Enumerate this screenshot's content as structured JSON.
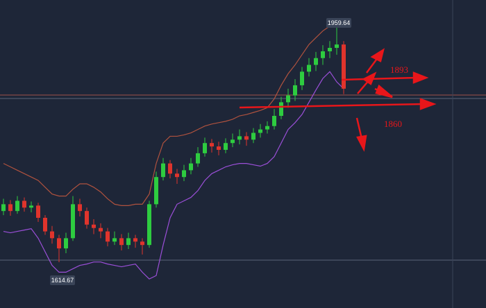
{
  "chart_data": {
    "type": "candlestick",
    "open": [
      1690,
      1700,
      1690,
      1705,
      1695,
      1698,
      1680,
      1660,
      1650,
      1635,
      1650,
      1700,
      1690,
      1670,
      1665,
      1660,
      1645,
      1650,
      1640,
      1650,
      1645,
      1640,
      1700,
      1740,
      1760,
      1745,
      1740,
      1750,
      1760,
      1775,
      1790,
      1785,
      1780,
      1790,
      1795,
      1800,
      1795,
      1805,
      1810,
      1815,
      1830,
      1850,
      1860,
      1875,
      1895,
      1905,
      1915,
      1925,
      1930,
      1935
    ],
    "high": [
      1708,
      1706,
      1712,
      1710,
      1704,
      1702,
      1684,
      1668,
      1655,
      1658,
      1712,
      1708,
      1695,
      1678,
      1672,
      1665,
      1660,
      1656,
      1658,
      1655,
      1650,
      1705,
      1748,
      1768,
      1765,
      1752,
      1758,
      1768,
      1784,
      1798,
      1796,
      1792,
      1797,
      1804,
      1810,
      1806,
      1812,
      1818,
      1822,
      1840,
      1858,
      1870,
      1884,
      1902,
      1915,
      1924,
      1934,
      1940,
      1959.64,
      1940
    ],
    "low": [
      1684,
      1683,
      1686,
      1689,
      1688,
      1674,
      1655,
      1642,
      1614.67,
      1628,
      1646,
      1682,
      1664,
      1656,
      1650,
      1638,
      1640,
      1632,
      1634,
      1636,
      1626,
      1636,
      1695,
      1735,
      1738,
      1730,
      1734,
      1744,
      1755,
      1770,
      1776,
      1772,
      1775,
      1784,
      1788,
      1786,
      1790,
      1798,
      1804,
      1810,
      1825,
      1842,
      1852,
      1868,
      1888,
      1896,
      1905,
      1915,
      1920,
      1862
    ],
    "close": [
      1700,
      1690,
      1705,
      1695,
      1698,
      1680,
      1660,
      1650,
      1635,
      1650,
      1700,
      1690,
      1670,
      1665,
      1660,
      1645,
      1650,
      1640,
      1650,
      1645,
      1640,
      1700,
      1740,
      1760,
      1745,
      1740,
      1750,
      1760,
      1775,
      1790,
      1785,
      1780,
      1790,
      1795,
      1800,
      1795,
      1805,
      1810,
      1815,
      1830,
      1850,
      1860,
      1875,
      1895,
      1905,
      1915,
      1925,
      1930,
      1935,
      1870
    ],
    "up_color": "#2ecc40",
    "down_color": "#e0342c",
    "bands": [
      {
        "color": "#b0523e",
        "values": [
          1760,
          1755,
          1750,
          1745,
          1740,
          1735,
          1725,
          1715,
          1712,
          1712,
          1722,
          1730,
          1730,
          1725,
          1718,
          1708,
          1700,
          1698,
          1698,
          1700,
          1700,
          1715,
          1760,
          1790,
          1800,
          1800,
          1802,
          1805,
          1810,
          1815,
          1818,
          1820,
          1822,
          1825,
          1830,
          1832,
          1835,
          1838,
          1842,
          1855,
          1875,
          1892,
          1905,
          1920,
          1935,
          1945,
          1955,
          1962,
          1968,
          1970
        ]
      },
      {
        "color": "#9b4fd8",
        "values": [
          1660,
          1658,
          1660,
          1662,
          1664,
          1650,
          1630,
          1610,
          1600,
          1600,
          1605,
          1610,
          1612,
          1615,
          1615,
          1612,
          1610,
          1608,
          1610,
          1612,
          1600,
          1590,
          1595,
          1640,
          1680,
          1700,
          1705,
          1710,
          1720,
          1735,
          1745,
          1750,
          1755,
          1758,
          1760,
          1760,
          1758,
          1756,
          1760,
          1770,
          1790,
          1810,
          1820,
          1832,
          1850,
          1868,
          1885,
          1895,
          1880,
          1870
        ]
      }
    ],
    "annotations": [
      "1959.64",
      "1614.67",
      "1893",
      "1860"
    ]
  }
}
